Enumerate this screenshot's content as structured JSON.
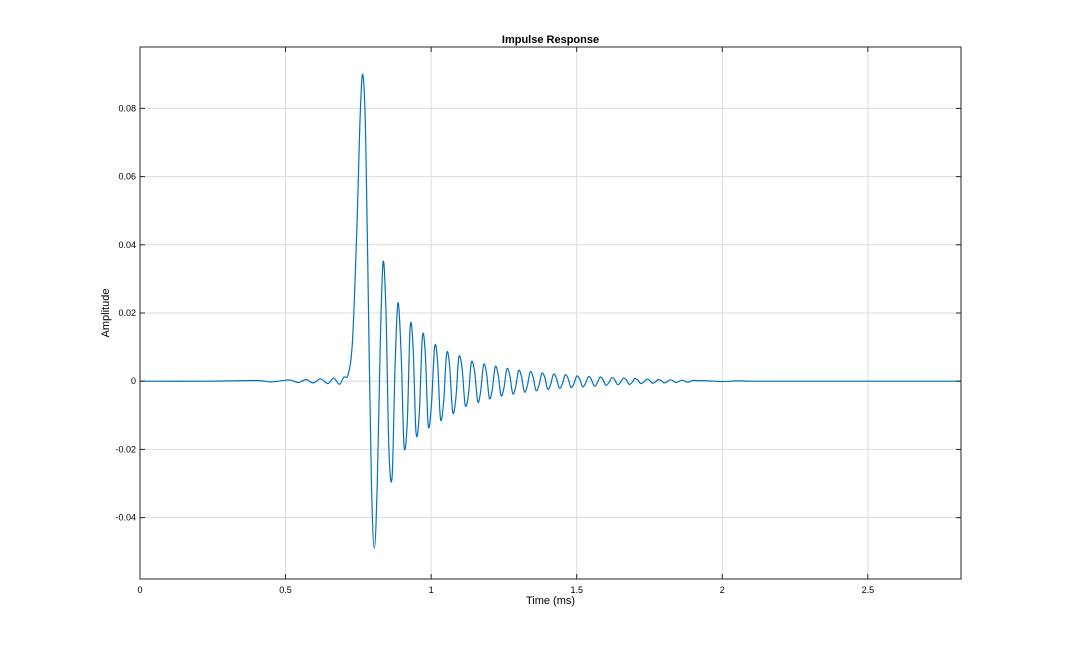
{
  "chart_data": {
    "type": "line",
    "title": "Impulse Response",
    "xlabel": "Time (ms)",
    "ylabel": "Amplitude",
    "xlim": [
      0,
      2.82
    ],
    "ylim": [
      -0.058,
      0.098
    ],
    "grid": true,
    "x_ticks": [
      0,
      0.5,
      1,
      1.5,
      2,
      2.5
    ],
    "x_tick_labels": [
      "0",
      "0.5",
      "1",
      "1.5",
      "2",
      "2.5"
    ],
    "y_ticks": [
      -0.04,
      -0.02,
      0,
      0.02,
      0.04,
      0.06,
      0.08
    ],
    "y_tick_labels": [
      "-0.04",
      "-0.02",
      "0",
      "0.02",
      "0.04",
      "0.06",
      "0.08"
    ],
    "line_color": "#0072bd",
    "series": [
      {
        "x": [
          0,
          0.25,
          0.4,
          0.45,
          0.5,
          0.52,
          0.545,
          0.57,
          0.595,
          0.62,
          0.645,
          0.665,
          0.685,
          0.7,
          0.715,
          0.73,
          0.745,
          0.755,
          0.765,
          0.775,
          0.785,
          0.795,
          0.805,
          0.815,
          0.825,
          0.835,
          0.845,
          0.855,
          0.866,
          0.876,
          0.886,
          0.897,
          0.907,
          0.918,
          0.928,
          0.938,
          0.948,
          0.959,
          0.97,
          0.98,
          0.99,
          1.001,
          1.012,
          1.022,
          1.032,
          1.043,
          1.053,
          1.063,
          1.074,
          1.085,
          1.095,
          1.106,
          1.117,
          1.128,
          1.138,
          1.149,
          1.16,
          1.17,
          1.18,
          1.19,
          1.2,
          1.21,
          1.22,
          1.23,
          1.24,
          1.25,
          1.26,
          1.27,
          1.28,
          1.29,
          1.3,
          1.31,
          1.32,
          1.33,
          1.34,
          1.35,
          1.36,
          1.37,
          1.38,
          1.39,
          1.4,
          1.41,
          1.42,
          1.43,
          1.44,
          1.45,
          1.46,
          1.47,
          1.48,
          1.49,
          1.5,
          1.51,
          1.52,
          1.53,
          1.54,
          1.55,
          1.56,
          1.57,
          1.58,
          1.59,
          1.6,
          1.61,
          1.62,
          1.63,
          1.64,
          1.65,
          1.66,
          1.67,
          1.68,
          1.69,
          1.7,
          1.71,
          1.72,
          1.73,
          1.74,
          1.75,
          1.76,
          1.77,
          1.78,
          1.79,
          1.8,
          1.81,
          1.82,
          1.83,
          1.84,
          1.85,
          1.86,
          1.87,
          1.88,
          1.89,
          1.9,
          1.95,
          2.0,
          2.05,
          2.1,
          2.2,
          2.4,
          2.82
        ],
        "y": [
          0,
          0,
          0.0002,
          -0.0002,
          0.0003,
          0.0003,
          -0.0004,
          0.0005,
          -0.0005,
          0.0007,
          -0.0007,
          0.0009,
          -0.0009,
          0.0012,
          0.002,
          0.012,
          0.045,
          0.075,
          0.09,
          0.072,
          0.02,
          -0.03,
          -0.049,
          -0.03,
          0.01,
          0.035,
          0.02,
          -0.02,
          -0.028,
          0.004,
          0.023,
          0.008,
          -0.019,
          -0.012,
          0.016,
          0.01,
          -0.015,
          -0.01,
          0.013,
          0.008,
          -0.013,
          -0.007,
          0.01,
          0.006,
          -0.011,
          -0.006,
          0.008,
          0.005,
          -0.009,
          -0.005,
          0.007,
          0.004,
          -0.007,
          -0.004,
          0.0055,
          0.003,
          -0.006,
          -0.003,
          0.0048,
          0.0025,
          -0.005,
          -0.0025,
          0.0042,
          0.0021,
          -0.0042,
          -0.002,
          0.0036,
          0.0018,
          -0.0036,
          -0.0018,
          0.0031,
          0.0015,
          -0.0031,
          -0.0015,
          0.0027,
          0.0013,
          -0.0027,
          -0.0013,
          0.0023,
          0.0012,
          -0.0023,
          -0.0011,
          0.002,
          0.001,
          -0.002,
          -0.001,
          0.0018,
          0.0009,
          -0.0018,
          -0.0008,
          0.0015,
          0.0007,
          -0.0016,
          -0.0007,
          0.0013,
          0.0006,
          -0.0014,
          -0.0006,
          0.0012,
          0.0005,
          -0.0012,
          -0.0005,
          0.001,
          0.0005,
          -0.001,
          -0.0004,
          0.0009,
          0.0004,
          -0.0009,
          -0.0004,
          0.0008,
          0.0003,
          -0.0007,
          -0.0003,
          0.0006,
          0.0003,
          -0.0006,
          -0.0002,
          0.0005,
          0.0002,
          -0.0005,
          -0.0002,
          0.0004,
          0.0002,
          -0.0004,
          -0.0001,
          0.0003,
          0.0001,
          -0.0003,
          -0.0001,
          0.0002,
          0.0001,
          -0.0001,
          0.0001,
          0,
          0,
          0,
          0
        ]
      }
    ]
  }
}
